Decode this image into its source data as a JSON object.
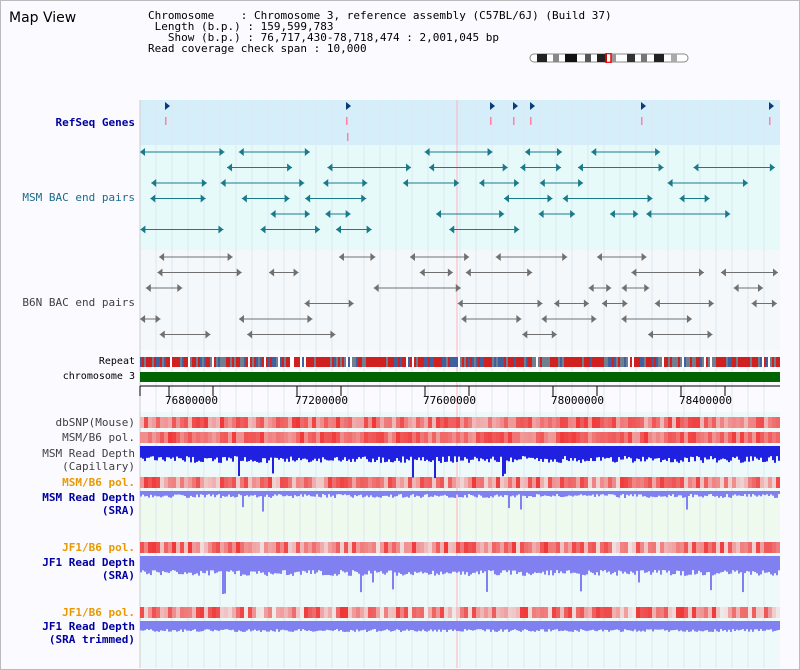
{
  "app": {
    "title": "Map View"
  },
  "info": {
    "chromosome_label": "Chromosome",
    "chromosome_value": "Chromosome 3, reference assembly (C57BL/6J) (Build 37)",
    "length_label": "Length (b.p.)",
    "length_value": "159,599,783",
    "show_label": "Show (b.p.)",
    "show_value": "76,717,430-78,718,474 : 2,001,045 bp",
    "coverage_label": "Read coverage check span",
    "coverage_value": "10,000"
  },
  "tracks": {
    "refseq": "RefSeq Genes",
    "msm_bac": "MSM BAC end pairs",
    "b6n_bac": "B6N BAC end pairs",
    "repeat": "Repeat",
    "chromosome": "chromosome 3",
    "dbsnp": "dbSNP(Mouse)",
    "msm_b6_pol": "MSM/B6 pol.",
    "msm_read_depth_cap_1": "MSM Read Depth",
    "msm_read_depth_cap_2": "(Capillary)",
    "msm_b6_pol_2": "MSM/B6 pol.",
    "msm_read_depth_sra_1": "MSM Read Depth",
    "msm_read_depth_sra_2": "(SRA)",
    "jf1_b6_pol": "JF1/B6 pol.",
    "jf1_read_depth_sra_1": "JF1 Read Depth",
    "jf1_read_depth_sra_2": "(SRA)",
    "jf1_b6_pol_2": "JF1/B6 pol.",
    "jf1_read_depth_trim_1": "JF1 Read Depth",
    "jf1_read_depth_trim_2": "(SRA trimmed)"
  },
  "axis": {
    "ticks": [
      "76800000",
      "77200000",
      "77600000",
      "78000000",
      "78400000"
    ]
  },
  "colors": {
    "refseq_bg": "#d6eefa",
    "bac_bg": "#e6fafa",
    "msm_feature": "#1a7a8a",
    "b6n_feature": "#707070",
    "chromosome_bar": "#006400",
    "depth_blue": "#2020e0",
    "depth_light": "#8080f0",
    "pol_red": "#e02020",
    "gene_pink": "#ff80a0"
  }
}
